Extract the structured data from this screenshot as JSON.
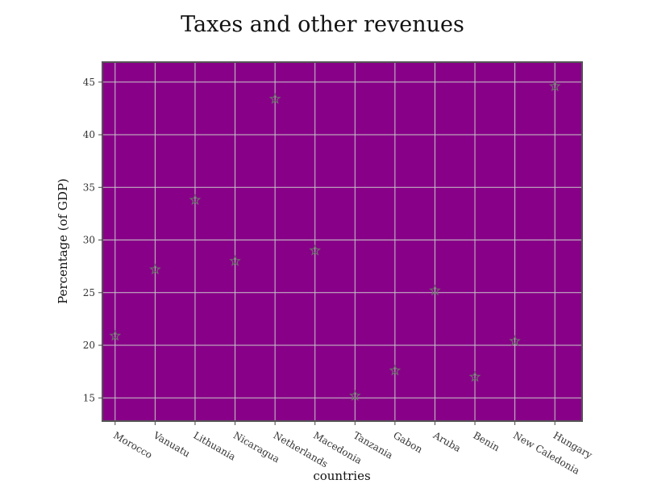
{
  "chart_data": {
    "type": "scatter",
    "title": "Taxes and other revenues",
    "xlabel": "countries",
    "ylabel": "Percentage (of GDP)",
    "categories": [
      "Morocco",
      "Vanuatu",
      "Lithuania",
      "Nicaragua",
      "Netherlands",
      "Macedonia",
      "Tanzania",
      "Gabon",
      "Aruba",
      "Benin",
      "New Caledonia",
      "Hungary"
    ],
    "values": [
      20.9,
      27.2,
      33.8,
      28.0,
      43.4,
      29.0,
      15.2,
      17.6,
      25.2,
      17.0,
      20.4,
      44.6
    ],
    "ylim": [
      12.8,
      46.9
    ],
    "yticks": [
      15,
      20,
      25,
      30,
      35,
      40,
      45
    ],
    "grid": true,
    "marker": "star",
    "colors": {
      "plot_bg": "#880088",
      "grid": "#c8c8c8",
      "marker": "#6b6b6b",
      "frame": "#555555"
    }
  }
}
